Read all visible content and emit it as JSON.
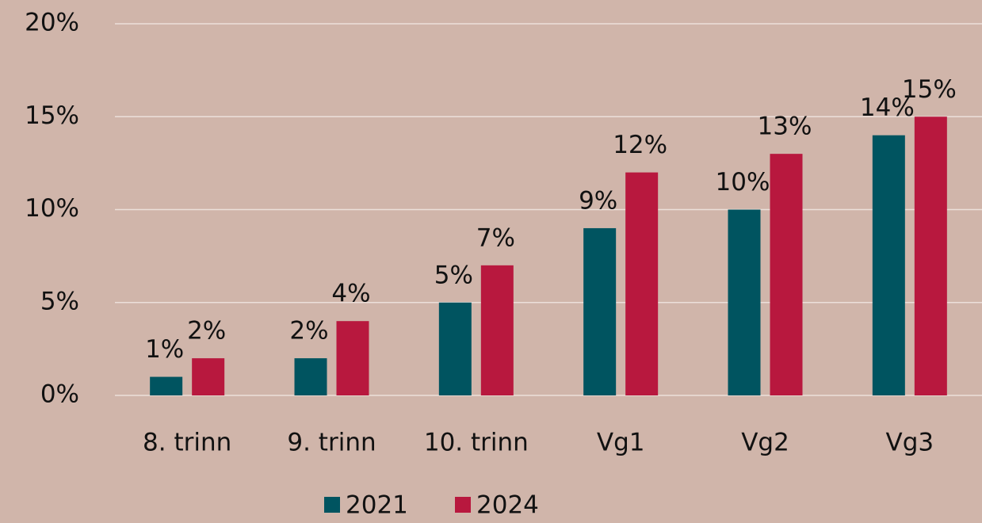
{
  "chart_data": {
    "type": "bar",
    "categories": [
      "8. trinn",
      "9. trinn",
      "10. trinn",
      "Vg1",
      "Vg2",
      "Vg3"
    ],
    "series": [
      {
        "name": "2021",
        "color": "#005460",
        "values": [
          1,
          2,
          5,
          9,
          10,
          14
        ],
        "value_labels": [
          "1%",
          "2%",
          "5%",
          "9%",
          "10%",
          "14%"
        ]
      },
      {
        "name": "2024",
        "color": "#b8183e",
        "values": [
          2,
          4,
          7,
          12,
          13,
          15
        ],
        "value_labels": [
          "2%",
          "4%",
          "7%",
          "12%",
          "13%",
          "15%"
        ]
      }
    ],
    "ylim": [
      0,
      20
    ],
    "yticks": [
      {
        "value": 0,
        "label": "0%"
      },
      {
        "value": 5,
        "label": "5%"
      },
      {
        "value": 10,
        "label": "10%"
      },
      {
        "value": 15,
        "label": "15%"
      },
      {
        "value": 20,
        "label": "20%"
      }
    ],
    "grid": true,
    "legend": "bottom"
  }
}
